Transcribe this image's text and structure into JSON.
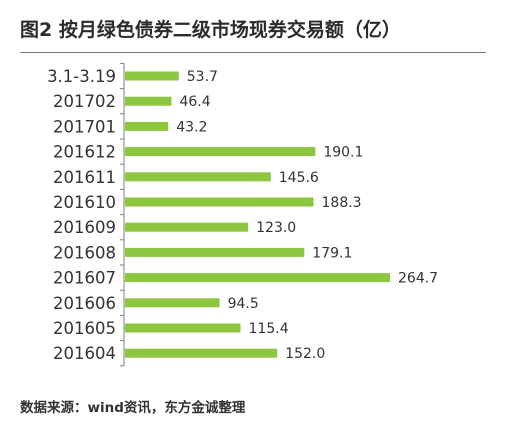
{
  "title": "图2  按月绿色债券二级市场现券交易额（亿）",
  "source": "数据来源：wind资讯，东方金诚整理",
  "chart_data": {
    "type": "bar",
    "orientation": "horizontal",
    "categories": [
      "3.1-3.19",
      "201702",
      "201701",
      "201612",
      "201611",
      "201610",
      "201609",
      "201608",
      "201607",
      "201606",
      "201605",
      "201604"
    ],
    "values": [
      53.7,
      46.4,
      43.2,
      190.1,
      145.6,
      188.3,
      123.0,
      179.1,
      264.7,
      94.5,
      115.4,
      152.0
    ],
    "value_labels": [
      "53.7",
      "46.4",
      "43.2",
      "190.1",
      "145.6",
      "188.3",
      "123.0",
      "179.1",
      "264.7",
      "94.5",
      "115.4",
      "152.0"
    ],
    "xlim": [
      0,
      264.7
    ],
    "bar_color": "#8dc63f",
    "axis_color": "#7f7f7f",
    "grid": false,
    "legend": "none",
    "xlabel": "",
    "ylabel": ""
  }
}
